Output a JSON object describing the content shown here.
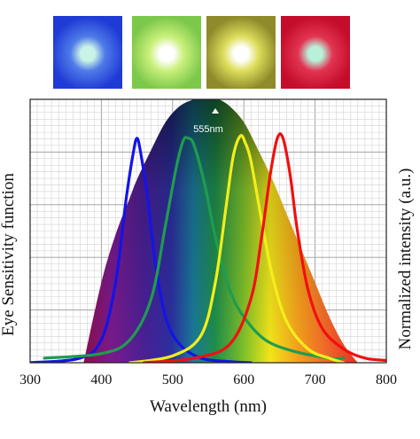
{
  "swatches": [
    {
      "name": "blue-led",
      "edge": "#1f3bd6",
      "mid": "#4f7be8",
      "center": "#c9f3e6"
    },
    {
      "name": "green-led",
      "edge": "#7cc84b",
      "mid": "#c9f07a",
      "center": "#ffffff"
    },
    {
      "name": "yellow-led",
      "edge": "#8f8a2a",
      "mid": "#dede5c",
      "center": "#ffffff"
    },
    {
      "name": "red-led",
      "edge": "#c40d2a",
      "mid": "#e23452",
      "center": "#b8f0d8"
    }
  ],
  "chart_data": {
    "type": "line",
    "xlabel": "Wavelength (nm)",
    "ylabel_left": "Eye Sensitivity function",
    "ylabel_right": "Normalized intensity (a.u.)",
    "xlim": [
      300,
      800
    ],
    "ylim": [
      0,
      1.15
    ],
    "xticks": [
      300,
      400,
      500,
      600,
      700,
      800
    ],
    "grid": true,
    "annotation": {
      "text": "555nm",
      "x": 555
    },
    "eye_sensitivity": {
      "x": [
        375,
        400,
        420,
        440,
        450,
        470,
        490,
        510,
        530,
        545,
        555,
        565,
        580,
        600,
        620,
        640,
        660,
        680,
        700,
        720,
        740,
        760
      ],
      "y": [
        0.0,
        0.35,
        0.56,
        0.72,
        0.8,
        0.93,
        1.05,
        1.12,
        1.15,
        1.16,
        1.16,
        1.15,
        1.12,
        1.05,
        0.93,
        0.8,
        0.65,
        0.5,
        0.35,
        0.2,
        0.08,
        0.0
      ]
    },
    "series": [
      {
        "name": "Blue",
        "color": "#1414e6",
        "x": [
          300,
          370,
          400,
          420,
          435,
          445,
          450,
          455,
          465,
          475,
          490,
          510,
          540,
          580,
          610
        ],
        "y": [
          0.0,
          0.02,
          0.1,
          0.35,
          0.72,
          0.92,
          0.98,
          0.92,
          0.72,
          0.45,
          0.2,
          0.08,
          0.02,
          0.005,
          0.0
        ]
      },
      {
        "name": "Green",
        "color": "#1f9c4f",
        "x": [
          320,
          400,
          440,
          470,
          490,
          505,
          515,
          522,
          530,
          545,
          560,
          580,
          600,
          630,
          670,
          720,
          740
        ],
        "y": [
          0.02,
          0.04,
          0.1,
          0.28,
          0.6,
          0.85,
          0.97,
          0.98,
          0.95,
          0.78,
          0.55,
          0.32,
          0.2,
          0.1,
          0.05,
          0.02,
          0.02
        ]
      },
      {
        "name": "Yellow",
        "color": "#f2ee1c",
        "x": [
          440,
          500,
          540,
          560,
          575,
          585,
          595,
          602,
          610,
          625,
          640,
          660,
          690,
          720,
          740
        ],
        "y": [
          0.0,
          0.03,
          0.12,
          0.35,
          0.68,
          0.9,
          0.99,
          0.96,
          0.88,
          0.62,
          0.38,
          0.18,
          0.06,
          0.02,
          0.0
        ]
      },
      {
        "name": "Red",
        "color": "#f01010",
        "x": [
          460,
          530,
          580,
          610,
          625,
          637,
          647,
          655,
          665,
          675,
          690,
          710,
          740,
          770,
          800
        ],
        "y": [
          0.0,
          0.02,
          0.08,
          0.28,
          0.55,
          0.82,
          0.98,
          0.98,
          0.82,
          0.58,
          0.32,
          0.15,
          0.06,
          0.02,
          0.01
        ]
      }
    ]
  }
}
